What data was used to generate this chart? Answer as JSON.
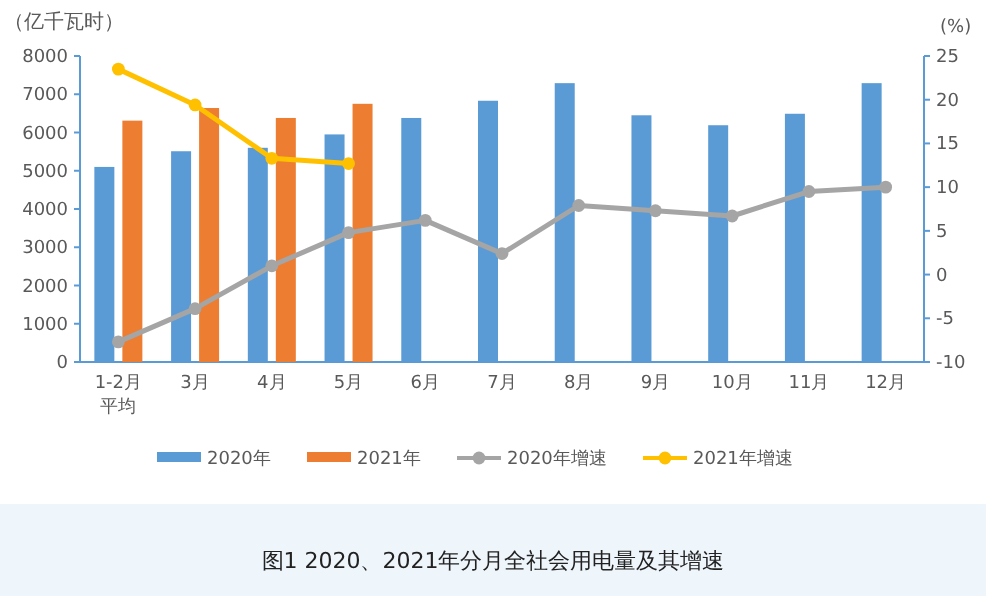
{
  "chart_data": {
    "type": "bar",
    "title": "图1 2020、2021年分月全社会用电量及其增速",
    "ylabel": "（亿千瓦时）",
    "y2label": "(%)",
    "categories": [
      "1-2月平均",
      "3月",
      "4月",
      "5月",
      "6月",
      "7月",
      "8月",
      "9月",
      "10月",
      "11月",
      "12月"
    ],
    "series": [
      {
        "name": "2020年",
        "color": "#5b9bd5",
        "values": [
          5100,
          5510,
          5600,
          5950,
          6380,
          6830,
          7290,
          6450,
          6190,
          6490,
          7290
        ]
      },
      {
        "name": "2021年",
        "color": "#ed7d31",
        "values": [
          6310,
          6640,
          6380,
          6750,
          null,
          null,
          null,
          null,
          null,
          null,
          null
        ]
      },
      {
        "name": "2020年增速",
        "type": "line",
        "axis": "y2",
        "color": "#a5a5a5",
        "values": [
          -7.7,
          -3.9,
          1.0,
          4.8,
          6.2,
          2.4,
          7.9,
          7.3,
          6.7,
          9.5,
          10.0
        ]
      },
      {
        "name": "2021年增速",
        "type": "line",
        "axis": "y2",
        "color": "#ffc000",
        "values": [
          23.5,
          19.4,
          13.3,
          12.7,
          null,
          null,
          null,
          null,
          null,
          null,
          null
        ]
      }
    ],
    "ylim": [
      0,
      8000
    ],
    "yticks": [
      0,
      1000,
      2000,
      3000,
      4000,
      5000,
      6000,
      7000,
      8000
    ],
    "y2lim": [
      -10,
      25
    ],
    "y2ticks": [
      -10,
      -5,
      0,
      5,
      10,
      15,
      20,
      25
    ],
    "marker": "circle",
    "legend": "bottom",
    "grid": false
  }
}
